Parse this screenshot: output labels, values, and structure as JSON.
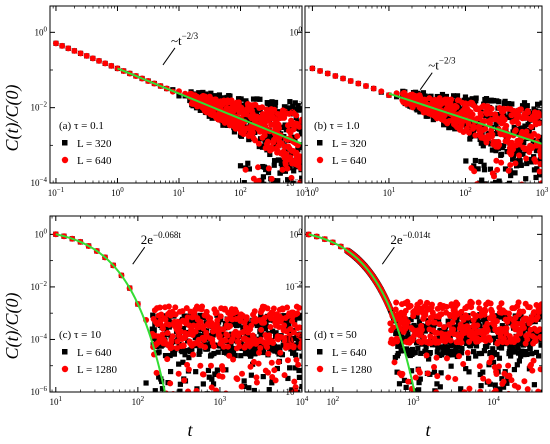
{
  "figure": {
    "ylabel": "C(t)/C(0)",
    "xlabel": "t"
  },
  "chart_data": [
    {
      "type": "scatter",
      "panel_label": "(a)",
      "tau_label": "τ = 0.1",
      "xscale": "log",
      "yscale": "log",
      "xlim": [
        0.08,
        1000
      ],
      "ylim": [
        0.0001,
        5
      ],
      "xtick_exponents": [
        -1,
        0,
        1,
        2,
        3
      ],
      "ytick_exponents": [
        -4,
        -2,
        0
      ],
      "legend_position": "bottom-left",
      "series": [
        {
          "name": "L = 320",
          "marker": "square",
          "color": "#000000",
          "regime": "power",
          "amp": 0.11,
          "exponent": 0.667,
          "t_first": 0.1,
          "t_last": 1000,
          "noise_from": 0.09,
          "noise_to": 0.00012
        },
        {
          "name": "L = 640",
          "marker": "circle",
          "color": "#ff0000",
          "regime": "power",
          "amp": 0.11,
          "exponent": 0.667,
          "t_first": 0.1,
          "t_last": 1000,
          "noise_from": 0.05,
          "noise_to": 0.0002
        }
      ],
      "fit": {
        "label": "~t",
        "label_exp": "−2/3",
        "form": "power",
        "amp": 0.11,
        "exponent": 0.667,
        "x_range": [
          1,
          1000
        ],
        "color": "#33dd33"
      }
    },
    {
      "type": "scatter",
      "panel_label": "(b)",
      "tau_label": "τ = 1.0",
      "xscale": "log",
      "yscale": "log",
      "xlim": [
        0.8,
        1000
      ],
      "ylim": [
        0.0001,
        5
      ],
      "xtick_exponents": [
        0,
        1,
        2,
        3
      ],
      "ytick_exponents": [
        -4,
        -2,
        0
      ],
      "legend_position": "bottom-left",
      "series": [
        {
          "name": "L = 320",
          "marker": "square",
          "color": "#000000",
          "regime": "power",
          "amp": 0.11,
          "exponent": 0.667,
          "t_first": 1,
          "t_last": 1000,
          "noise_from": 0.06,
          "noise_to": 0.00015
        },
        {
          "name": "L = 640",
          "marker": "circle",
          "color": "#ff0000",
          "regime": "power",
          "amp": 0.11,
          "exponent": 0.667,
          "t_first": 1,
          "t_last": 1000,
          "noise_from": 0.04,
          "noise_to": 0.0004
        }
      ],
      "fit": {
        "label": "~t",
        "label_exp": "−2/3",
        "form": "power",
        "amp": 0.11,
        "exponent": 0.667,
        "x_range": [
          10,
          1000
        ],
        "color": "#33dd33"
      }
    },
    {
      "type": "scatter",
      "panel_label": "(c)",
      "tau_label": "τ = 10",
      "xscale": "log",
      "yscale": "log",
      "xlim": [
        8.5,
        10000
      ],
      "ylim": [
        1e-06,
        5
      ],
      "xtick_exponents": [
        1,
        2,
        3,
        4
      ],
      "ytick_exponents": [
        -6,
        -4,
        -2,
        0
      ],
      "legend_position": "bottom-left",
      "series": [
        {
          "name": "L = 640",
          "marker": "square",
          "color": "#000000",
          "regime": "exp",
          "amp": 2,
          "rate": 0.068,
          "t_first": 10,
          "t_last": 10000,
          "noise_level": 0.0001
        },
        {
          "name": "L = 1280",
          "marker": "circle",
          "color": "#ff0000",
          "regime": "exp",
          "amp": 2,
          "rate": 0.068,
          "t_first": 10,
          "t_last": 10000,
          "noise_level": 0.0002
        }
      ],
      "fit": {
        "label": "2e",
        "label_exp": "−0.068t",
        "form": "exp",
        "amp": 2,
        "rate": 0.068,
        "x_range": [
          10,
          10000
        ],
        "color": "#33dd33"
      }
    },
    {
      "type": "scatter",
      "panel_label": "(d)",
      "tau_label": "τ = 50",
      "xscale": "log",
      "yscale": "log",
      "xlim": [
        45,
        40000
      ],
      "ylim": [
        1e-06,
        5
      ],
      "xtick_exponents": [
        2,
        3,
        4
      ],
      "ytick_exponents": [
        -6,
        -4,
        -2,
        0
      ],
      "legend_position": "bottom-left",
      "series": [
        {
          "name": "L = 640",
          "marker": "square",
          "color": "#000000",
          "regime": "exp",
          "amp": 2,
          "rate": 0.014,
          "t_first": 50,
          "t_last": 40000,
          "noise_level": 0.0001
        },
        {
          "name": "L = 1280",
          "marker": "circle",
          "color": "#ff0000",
          "regime": "exp",
          "amp": 2,
          "rate": 0.014,
          "t_first": 50,
          "t_last": 40000,
          "noise_level": 0.0003
        }
      ],
      "fit": {
        "label": "2e",
        "label_exp": "−0.014t",
        "form": "exp",
        "amp": 2,
        "rate": 0.014,
        "x_range": [
          50,
          40000
        ],
        "color": "#33dd33"
      }
    }
  ]
}
